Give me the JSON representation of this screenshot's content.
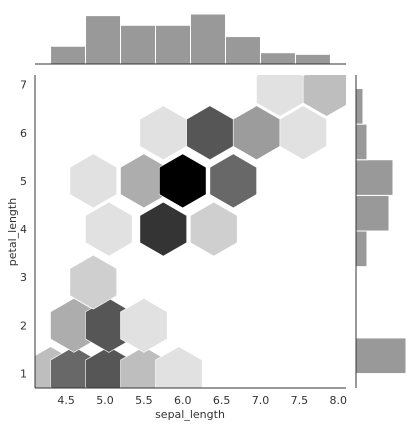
{
  "chart_data": {
    "type": "hexbin-jointplot",
    "xlabel": "sepal_length",
    "ylabel": "petal_length",
    "xlim": [
      4.1,
      8.1
    ],
    "ylim": [
      0.7,
      7.2
    ],
    "x_ticks": [
      "4.5",
      "5.0",
      "5.5",
      "6.0",
      "6.5",
      "7.0",
      "7.5",
      "8.0"
    ],
    "y_ticks": [
      "1",
      "2",
      "3",
      "4",
      "5",
      "6",
      "7"
    ],
    "grid": false,
    "colormap": "greys",
    "color_max": "#000000",
    "color_min": "#f2f2f2",
    "hexbins": [
      {
        "x": 4.3,
        "y": 1.0,
        "count": 3
      },
      {
        "x": 4.6,
        "y": 1.0,
        "count": 8
      },
      {
        "x": 5.05,
        "y": 1.0,
        "count": 9
      },
      {
        "x": 5.5,
        "y": 1.0,
        "count": 3
      },
      {
        "x": 5.95,
        "y": 1.0,
        "count": 1
      },
      {
        "x": 4.6,
        "y": 2.0,
        "count": 4
      },
      {
        "x": 5.05,
        "y": 2.0,
        "count": 9
      },
      {
        "x": 5.5,
        "y": 2.0,
        "count": 1
      },
      {
        "x": 4.85,
        "y": 2.9,
        "count": 2
      },
      {
        "x": 5.05,
        "y": 4.0,
        "count": 1
      },
      {
        "x": 5.75,
        "y": 4.0,
        "count": 11
      },
      {
        "x": 6.4,
        "y": 4.0,
        "count": 2
      },
      {
        "x": 4.85,
        "y": 5.0,
        "count": 1
      },
      {
        "x": 5.5,
        "y": 5.0,
        "count": 4
      },
      {
        "x": 6.0,
        "y": 5.0,
        "count": 14
      },
      {
        "x": 6.65,
        "y": 5.0,
        "count": 8
      },
      {
        "x": 5.75,
        "y": 6.0,
        "count": 1
      },
      {
        "x": 6.35,
        "y": 6.0,
        "count": 9
      },
      {
        "x": 6.95,
        "y": 6.0,
        "count": 5
      },
      {
        "x": 7.55,
        "y": 6.0,
        "count": 1
      },
      {
        "x": 7.25,
        "y": 6.9,
        "count": 1
      },
      {
        "x": 7.85,
        "y": 6.9,
        "count": 3
      }
    ],
    "x_hist": {
      "bin_edges": [
        4.3,
        4.75,
        5.2,
        5.65,
        6.1,
        6.55,
        7.0,
        7.45,
        7.9
      ],
      "counts": [
        11,
        30,
        24,
        24,
        31,
        17,
        7,
        6
      ],
      "color": "#999999"
    },
    "y_hist": {
      "bin_edges": [
        1.0,
        1.74,
        2.48,
        3.22,
        3.96,
        4.7,
        5.44,
        6.18,
        6.92
      ],
      "counts": [
        50,
        0,
        1,
        11,
        33,
        37,
        11,
        7
      ],
      "color": "#999999"
    }
  }
}
